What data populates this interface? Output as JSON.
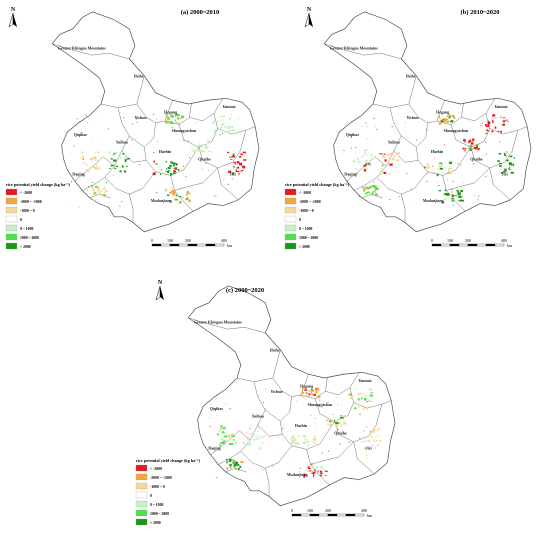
{
  "legend": {
    "title": "rice potential yield change (kg ha⁻¹)",
    "classes": [
      {
        "label": "< -2000",
        "color": "#e8191a"
      },
      {
        "label": "-2000 ~ -1000",
        "color": "#f3a63b"
      },
      {
        "label": "-1000 ~ 0",
        "color": "#f7d79b"
      },
      {
        "label": "0",
        "color": "#ffffff"
      },
      {
        "label": "0 ~ 1000",
        "color": "#c6f1c2"
      },
      {
        "label": "1000 ~ 2000",
        "color": "#4ee24a"
      },
      {
        "label": "> 2000",
        "color": "#149a14"
      }
    ]
  },
  "north_label": "N",
  "scale": {
    "ticks": [
      "0",
      "100",
      "200",
      "400"
    ],
    "unit": "km"
  },
  "cities": [
    "Greater Khingan Mountains",
    "Heihe",
    "Yichun",
    "Hegang",
    "Jiamusi",
    "Shuangyashan",
    "Qiqihar",
    "Suihua",
    "Harbin",
    "Qitaihe",
    "Jixi",
    "Daqing",
    "Mudanjiang"
  ],
  "panels": [
    {
      "id": "a",
      "title": "(a) 2000~2010",
      "palette": [
        "#c6f1c2",
        "#c6f1c2",
        "#4ee24a",
        "#149a14",
        "#149a14",
        "#f7d79b",
        "#f7d79b",
        "#f3a63b",
        "#e8191a"
      ]
    },
    {
      "id": "b",
      "title": "(b) 2010~2020",
      "palette": [
        "#e8191a",
        "#e8191a",
        "#f3a63b",
        "#f7d79b",
        "#f7d79b",
        "#c6f1c2",
        "#4ee24a",
        "#149a14",
        "#149a14"
      ]
    },
    {
      "id": "c",
      "title": "(c) 2000~2020",
      "palette": [
        "#f7d79b",
        "#f7d79b",
        "#f3a63b",
        "#c6f1c2",
        "#c6f1c2",
        "#4ee24a",
        "#149a14",
        "#e8191a",
        "#f7d79b"
      ]
    }
  ]
}
